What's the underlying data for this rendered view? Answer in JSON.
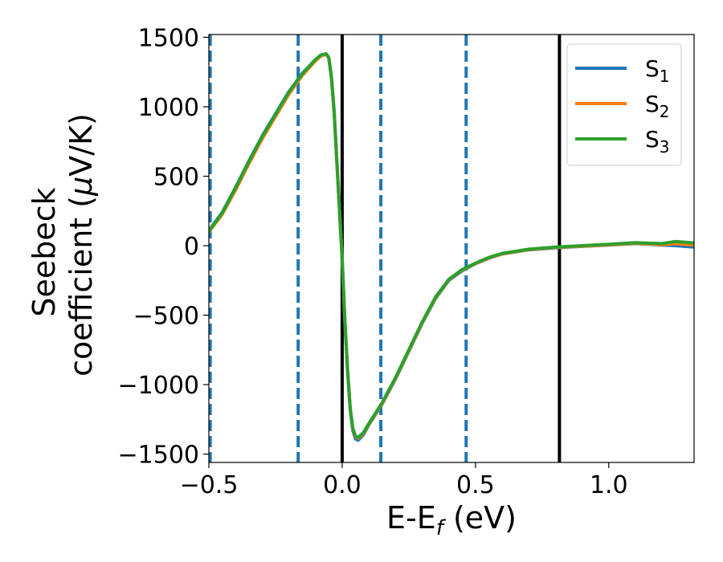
{
  "chart_data": {
    "type": "line",
    "xlabel": "E-E",
    "xlabel_sub": "f",
    "xlabel_unit": " (eV)",
    "ylabel_line1": "Seebeck",
    "ylabel_line2": "coefficient  (",
    "ylabel_mu": "μ",
    "ylabel_unit": "V/K)",
    "xlim": [
      -0.5,
      1.32
    ],
    "ylim": [
      -1560,
      1520
    ],
    "x_ticks": [
      -0.5,
      0.0,
      0.5,
      1.0
    ],
    "x_tick_labels": [
      "−0.5",
      "0.0",
      "0.5",
      "1.0"
    ],
    "y_ticks": [
      1500,
      1000,
      500,
      0,
      -500,
      -1000,
      -1500
    ],
    "y_tick_labels": [
      "1500",
      "1000",
      "500",
      "0",
      "−500",
      "−1000",
      "−1500"
    ],
    "vertical_lines": [
      {
        "x": -0.495,
        "style": "dashed",
        "color": "#1f77b4"
      },
      {
        "x": -0.165,
        "style": "dashed",
        "color": "#1f77b4"
      },
      {
        "x": 0.0,
        "style": "solid",
        "color": "#000000"
      },
      {
        "x": 0.145,
        "style": "dashed",
        "color": "#1f77b4"
      },
      {
        "x": 0.465,
        "style": "dashed",
        "color": "#1f77b4"
      },
      {
        "x": 0.815,
        "style": "solid",
        "color": "#000000"
      }
    ],
    "legend_position": "top-right",
    "grid": false,
    "series": [
      {
        "name": "S",
        "subscript": "1",
        "color": "#1f77b4",
        "x": [
          -0.5,
          -0.45,
          -0.4,
          -0.35,
          -0.3,
          -0.25,
          -0.2,
          -0.15,
          -0.1,
          -0.08,
          -0.06,
          -0.05,
          -0.04,
          -0.03,
          -0.02,
          -0.01,
          0.0,
          0.01,
          0.02,
          0.03,
          0.04,
          0.05,
          0.06,
          0.08,
          0.1,
          0.12,
          0.15,
          0.2,
          0.25,
          0.3,
          0.35,
          0.4,
          0.45,
          0.5,
          0.55,
          0.6,
          0.7,
          0.8,
          0.9,
          1.0,
          1.1,
          1.15,
          1.2,
          1.25,
          1.32
        ],
        "y": [
          110,
          240,
          420,
          610,
          790,
          950,
          1110,
          1240,
          1340,
          1370,
          1380,
          1350,
          1200,
          950,
          600,
          250,
          -100,
          -550,
          -900,
          -1180,
          -1330,
          -1390,
          -1400,
          -1360,
          -1290,
          -1230,
          -1140,
          -960,
          -760,
          -560,
          -380,
          -250,
          -180,
          -130,
          -90,
          -60,
          -30,
          -15,
          -5,
          5,
          15,
          10,
          5,
          0,
          -10
        ]
      },
      {
        "name": "S",
        "subscript": "2",
        "color": "#ff7f0e",
        "x": [
          -0.5,
          -0.45,
          -0.4,
          -0.35,
          -0.3,
          -0.25,
          -0.2,
          -0.15,
          -0.1,
          -0.08,
          -0.06,
          -0.05,
          -0.04,
          -0.03,
          -0.02,
          -0.01,
          0.0,
          0.01,
          0.02,
          0.03,
          0.04,
          0.05,
          0.06,
          0.08,
          0.1,
          0.12,
          0.15,
          0.2,
          0.25,
          0.3,
          0.35,
          0.4,
          0.45,
          0.5,
          0.55,
          0.6,
          0.7,
          0.8,
          0.9,
          1.0,
          1.1,
          1.15,
          1.2,
          1.25,
          1.32
        ],
        "y": [
          100,
          225,
          400,
          590,
          770,
          930,
          1090,
          1225,
          1330,
          1365,
          1378,
          1352,
          1205,
          960,
          610,
          260,
          -90,
          -540,
          -890,
          -1170,
          -1320,
          -1375,
          -1385,
          -1350,
          -1285,
          -1225,
          -1135,
          -955,
          -755,
          -555,
          -375,
          -245,
          -175,
          -128,
          -88,
          -58,
          -28,
          -12,
          -3,
          6,
          18,
          12,
          8,
          15,
          5
        ]
      },
      {
        "name": "S",
        "subscript": "3",
        "color": "#2ca02c",
        "x": [
          -0.5,
          -0.45,
          -0.4,
          -0.35,
          -0.3,
          -0.25,
          -0.2,
          -0.15,
          -0.1,
          -0.08,
          -0.06,
          -0.05,
          -0.04,
          -0.03,
          -0.02,
          -0.01,
          0.0,
          0.01,
          0.02,
          0.03,
          0.04,
          0.05,
          0.06,
          0.08,
          0.1,
          0.12,
          0.15,
          0.2,
          0.25,
          0.3,
          0.35,
          0.4,
          0.45,
          0.5,
          0.55,
          0.6,
          0.7,
          0.8,
          0.9,
          1.0,
          1.1,
          1.15,
          1.2,
          1.25,
          1.32
        ],
        "y": [
          105,
          235,
          415,
          605,
          785,
          945,
          1105,
          1235,
          1340,
          1372,
          1382,
          1355,
          1210,
          965,
          615,
          265,
          -85,
          -535,
          -885,
          -1165,
          -1315,
          -1370,
          -1380,
          -1345,
          -1280,
          -1220,
          -1130,
          -950,
          -750,
          -550,
          -370,
          -242,
          -172,
          -125,
          -85,
          -55,
          -25,
          -10,
          0,
          10,
          22,
          18,
          15,
          30,
          20
        ]
      }
    ]
  }
}
